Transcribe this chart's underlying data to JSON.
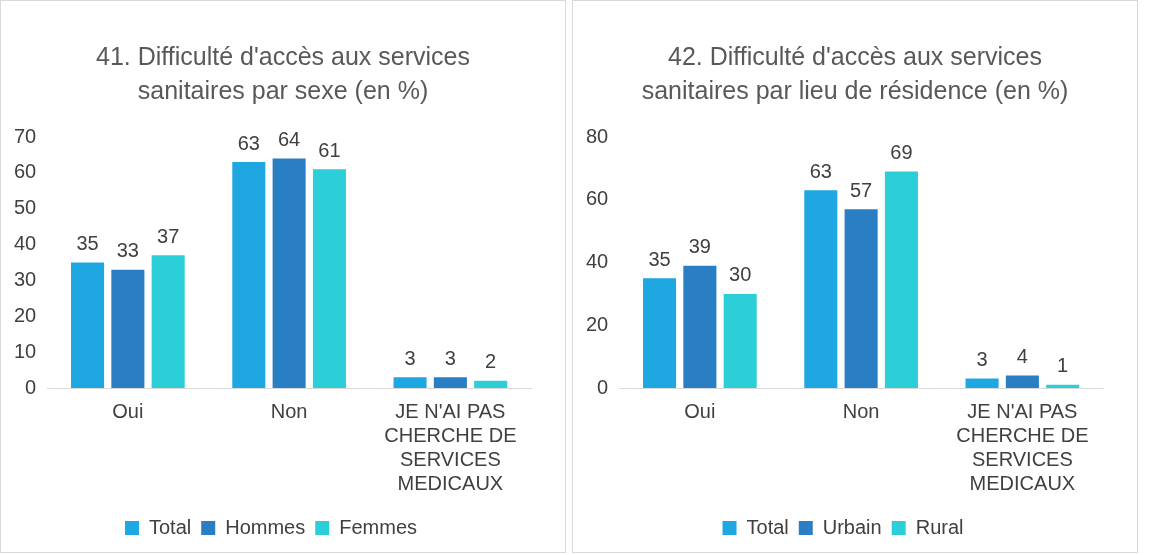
{
  "chart_data": [
    {
      "type": "bar",
      "title": "41. Difficulté d'accès aux services sanitaires par sexe (en %)",
      "categories": [
        "Oui",
        "Non",
        "JE N'AI PAS CHERCHE DE SERVICES MEDICAUX"
      ],
      "series": [
        {
          "name": "Total",
          "color": "#1ea7e1",
          "values": [
            35,
            63,
            3
          ]
        },
        {
          "name": "Hommes",
          "color": "#2a7fc4",
          "values": [
            33,
            64,
            3
          ]
        },
        {
          "name": "Femmes",
          "color": "#2ccfd8",
          "values": [
            37,
            61,
            2
          ]
        }
      ],
      "ylim": [
        0,
        70
      ],
      "yticks": [
        0,
        10,
        20,
        30,
        40,
        50,
        60,
        70
      ],
      "grid": false,
      "legend": "bottom",
      "data_labels": true
    },
    {
      "type": "bar",
      "title": "42. Difficulté d'accès aux services sanitaires par lieu de résidence (en %)",
      "categories": [
        "Oui",
        "Non",
        "JE N'AI PAS CHERCHE DE SERVICES MEDICAUX"
      ],
      "series": [
        {
          "name": "Total",
          "color": "#1ea7e1",
          "values": [
            35,
            63,
            3
          ]
        },
        {
          "name": "Urbain",
          "color": "#2a7fc4",
          "values": [
            39,
            57,
            4
          ]
        },
        {
          "name": "Rural",
          "color": "#2ccfd8",
          "values": [
            30,
            69,
            1
          ]
        }
      ],
      "ylim": [
        0,
        80
      ],
      "yticks": [
        0,
        20,
        40,
        60,
        80
      ],
      "grid": false,
      "legend": "bottom",
      "data_labels": true
    }
  ]
}
